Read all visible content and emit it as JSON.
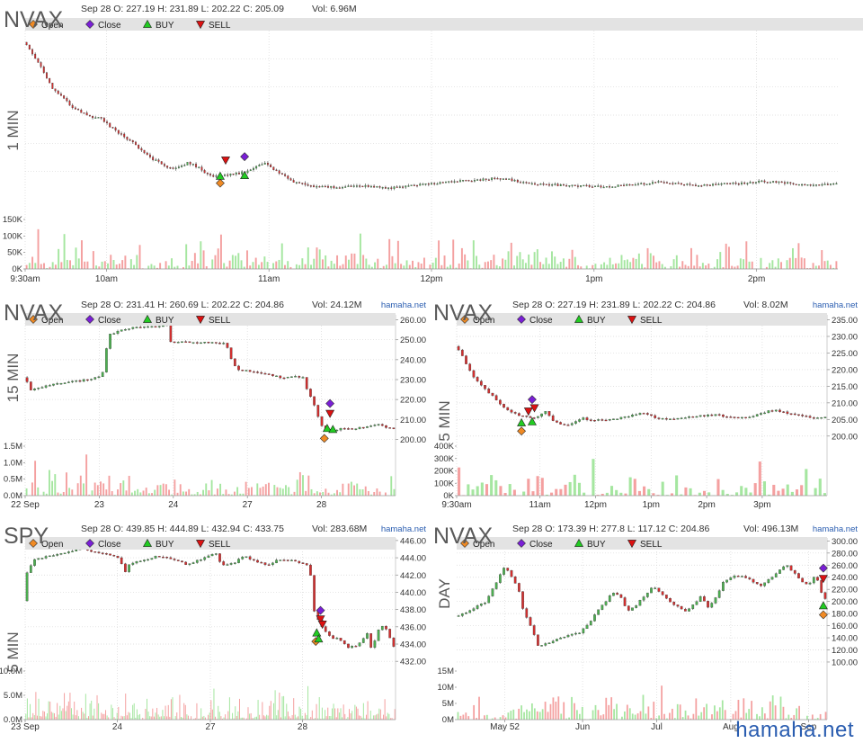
{
  "watermark": "hamaha.net",
  "colors": {
    "up": "#4caf50",
    "down": "#d32f2f",
    "vol_up": "#a5e6a0",
    "vol_down": "#f4a0a0",
    "buy": "#22cc22",
    "sell": "#dd1111",
    "open_marker": "#f08a24",
    "close_marker": "#7a1fd6",
    "legend_bar": "#e3e3e3",
    "grid": "#d8d8d8"
  },
  "chart_data": [
    {
      "id": "nvax-1min",
      "type": "candlestick",
      "symbol": "NVAX",
      "interval": "1 MIN",
      "info": "Sep 28 O: 227.19 H: 231.89 L: 202.22 C: 205.09",
      "volume_text": "Vol: 6.96M",
      "source": "",
      "legend": [
        "Open",
        "Close",
        "BUY",
        "SELL"
      ],
      "x_domain": [
        0,
        300
      ],
      "price_path": [
        [
          0,
          230.5
        ],
        [
          5,
          227.5
        ],
        [
          10,
          224
        ],
        [
          18,
          221
        ],
        [
          24,
          219.8
        ],
        [
          28,
          219.6
        ],
        [
          32,
          218.2
        ],
        [
          40,
          216
        ],
        [
          46,
          214
        ],
        [
          52,
          212.7
        ],
        [
          56,
          212.4
        ],
        [
          60,
          213.2
        ],
        [
          64,
          212.6
        ],
        [
          67,
          211.6
        ],
        [
          70,
          211.3
        ],
        [
          76,
          211.5
        ],
        [
          80,
          211.8
        ],
        [
          84,
          212.3
        ],
        [
          88,
          213.2
        ],
        [
          90,
          212.7
        ],
        [
          93,
          212
        ],
        [
          99,
          210.5
        ],
        [
          106,
          209.9
        ],
        [
          112,
          209.7
        ],
        [
          125,
          209.9
        ],
        [
          135,
          209.6
        ],
        [
          145,
          210
        ],
        [
          155,
          210.4
        ],
        [
          165,
          210.7
        ],
        [
          175,
          211
        ],
        [
          180,
          210.7
        ],
        [
          185,
          210.3
        ],
        [
          190,
          210.1
        ],
        [
          200,
          210
        ],
        [
          210,
          209.8
        ],
        [
          220,
          209.9
        ],
        [
          228,
          210.2
        ],
        [
          235,
          210.5
        ],
        [
          240,
          210.2
        ],
        [
          248,
          210
        ],
        [
          256,
          210.1
        ],
        [
          264,
          210.3
        ],
        [
          272,
          210.5
        ],
        [
          278,
          210.4
        ],
        [
          285,
          210.2
        ],
        [
          292,
          210.1
        ],
        [
          300,
          210.2
        ]
      ],
      "volume_bars": 280,
      "volume_max": 150000,
      "y_ticks": [],
      "vol_ticks": [
        "150K",
        "100K",
        "50K",
        "0K"
      ],
      "x_ticks": [
        {
          "x": 0,
          "label": "9:30am"
        },
        {
          "x": 30,
          "label": "10am"
        },
        {
          "x": 90,
          "label": "11am"
        },
        {
          "x": 150,
          "label": "12pm"
        },
        {
          "x": 210,
          "label": "1pm"
        },
        {
          "x": 270,
          "label": "2pm"
        }
      ],
      "markers": [
        {
          "kind": "Open",
          "x": 72,
          "y": 210.3
        },
        {
          "kind": "BUY",
          "x": 72,
          "y": 211.3
        },
        {
          "kind": "SELL",
          "x": 74,
          "y": 213.6
        },
        {
          "kind": "Close",
          "x": 81,
          "y": 214.1
        },
        {
          "kind": "BUY",
          "x": 81,
          "y": 211.4
        }
      ]
    },
    {
      "id": "nvax-15min",
      "type": "candlestick",
      "symbol": "NVAX",
      "interval": "15 MIN",
      "info": "Sep 28 O: 231.41 H: 260.69 L: 202.22 C: 204.86",
      "volume_text": "Vol: 24.12M",
      "source": "hamaha.net",
      "legend": [
        "Open",
        "Close",
        "BUY",
        "SELL"
      ],
      "x_domain": [
        0,
        130
      ],
      "price_path": [
        [
          0,
          231
        ],
        [
          1,
          228
        ],
        [
          2,
          225
        ],
        [
          4,
          225.5
        ],
        [
          8,
          227
        ],
        [
          14,
          228.5
        ],
        [
          20,
          229.5
        ],
        [
          25,
          231
        ],
        [
          27,
          232.5
        ],
        [
          28,
          238
        ],
        [
          29,
          252
        ],
        [
          32,
          254
        ],
        [
          38,
          256
        ],
        [
          42,
          257
        ],
        [
          48,
          256.5
        ],
        [
          50,
          257.5
        ],
        [
          51,
          249
        ],
        [
          53,
          248.8
        ],
        [
          60,
          248.7
        ],
        [
          67,
          248.4
        ],
        [
          70,
          248
        ],
        [
          71,
          246
        ],
        [
          73,
          238
        ],
        [
          75,
          235
        ],
        [
          80,
          233.8
        ],
        [
          86,
          232.5
        ],
        [
          90,
          231
        ],
        [
          95,
          232
        ],
        [
          98,
          230.6
        ],
        [
          99,
          224
        ],
        [
          101,
          220
        ],
        [
          102,
          214
        ],
        [
          104,
          207
        ],
        [
          106,
          204
        ],
        [
          108,
          204.5
        ],
        [
          111,
          205.5
        ],
        [
          116,
          205.3
        ],
        [
          120,
          206.5
        ],
        [
          124,
          207.4
        ],
        [
          127,
          205.8
        ],
        [
          130,
          205.5
        ]
      ],
      "volume_bars": 130,
      "volume_max": 1700000,
      "y_ticks": [
        "260.00",
        "250.00",
        "240.00",
        "230.00",
        "220.00",
        "210.00",
        "200.00"
      ],
      "y_min": 197.5,
      "y_max": 262.5,
      "vol_ticks": [
        "1.5M",
        "1.0M",
        "0.5M",
        "0.0M"
      ],
      "x_ticks": [
        {
          "x": 0,
          "label": "22 Sep"
        },
        {
          "x": 26,
          "label": "23"
        },
        {
          "x": 52,
          "label": "24"
        },
        {
          "x": 78,
          "label": "27"
        },
        {
          "x": 104,
          "label": "28"
        }
      ],
      "markers": [
        {
          "kind": "Open",
          "x": 105,
          "y": 200.5
        },
        {
          "kind": "Close",
          "x": 107,
          "y": 218
        },
        {
          "kind": "BUY",
          "x": 106,
          "y": 205.5
        },
        {
          "kind": "SELL",
          "x": 107,
          "y": 213
        },
        {
          "kind": "BUY",
          "x": 108,
          "y": 205
        }
      ]
    },
    {
      "id": "nvax-5min",
      "type": "candlestick",
      "symbol": "NVAX",
      "interval": "5 MIN",
      "info": "Sep 28 O: 227.19 H: 231.89 L: 202.22 C: 204.86",
      "volume_text": "Vol: 8.02M",
      "source": "hamaha.net",
      "legend": [
        "Open",
        "Close",
        "BUY",
        "SELL"
      ],
      "x_domain": [
        0,
        80
      ],
      "price_path": [
        [
          0,
          227
        ],
        [
          2,
          222
        ],
        [
          4,
          217
        ],
        [
          7,
          213
        ],
        [
          10,
          209
        ],
        [
          12,
          207
        ],
        [
          14,
          206
        ],
        [
          17,
          205.5
        ],
        [
          19,
          207.5
        ],
        [
          21,
          204.5
        ],
        [
          23,
          203
        ],
        [
          25,
          204
        ],
        [
          27,
          205.5
        ],
        [
          29,
          204.8
        ],
        [
          33,
          205
        ],
        [
          37,
          205.8
        ],
        [
          40,
          207
        ],
        [
          43,
          205.6
        ],
        [
          47,
          205
        ],
        [
          52,
          206
        ],
        [
          56,
          206.4
        ],
        [
          60,
          205.5
        ],
        [
          64,
          205.9
        ],
        [
          67,
          207.4
        ],
        [
          69,
          207.6
        ],
        [
          73,
          206.4
        ],
        [
          76,
          205.7
        ],
        [
          80,
          205.5
        ]
      ],
      "volume_bars": 80,
      "volume_max": 400000,
      "y_ticks": [
        "235.00",
        "230.00",
        "225.00",
        "220.00",
        "215.00",
        "210.00",
        "205.00",
        "200.00"
      ],
      "y_min": 197.5,
      "y_max": 236.5,
      "vol_ticks": [
        "400K",
        "300K",
        "200K",
        "100K",
        "0K"
      ],
      "x_ticks": [
        {
          "x": 0,
          "label": "9:30am"
        },
        {
          "x": 18,
          "label": "11am"
        },
        {
          "x": 30,
          "label": "12pm"
        },
        {
          "x": 42,
          "label": "1pm"
        },
        {
          "x": 54,
          "label": "2pm"
        },
        {
          "x": 66,
          "label": "3pm"
        }
      ],
      "markers": [
        {
          "kind": "Open",
          "x": 14,
          "y": 201.5
        },
        {
          "kind": "BUY",
          "x": 14,
          "y": 204
        },
        {
          "kind": "SELL",
          "x": 15.5,
          "y": 207.5
        },
        {
          "kind": "Close",
          "x": 16.3,
          "y": 211
        },
        {
          "kind": "BUY",
          "x": 16.3,
          "y": 204.3
        },
        {
          "kind": "SELL",
          "x": 16.8,
          "y": 208.5
        }
      ]
    },
    {
      "id": "spy-5min",
      "type": "candlestick",
      "symbol": "SPY",
      "interval": "5 MIN",
      "info": "Sep 28 O: 439.85 H: 444.89 L: 432.94 C: 433.75",
      "volume_text": "Vol: 283.68M",
      "source": "hamaha.net",
      "legend": [
        "Open",
        "Close",
        "BUY",
        "SELL"
      ],
      "x_domain": [
        0,
        390
      ],
      "price_path": [
        [
          0,
          439
        ],
        [
          2,
          442.3
        ],
        [
          10,
          443.8
        ],
        [
          30,
          444.3
        ],
        [
          50,
          444.8
        ],
        [
          60,
          445.2
        ],
        [
          70,
          444.7
        ],
        [
          80,
          444.6
        ],
        [
          90,
          444.3
        ],
        [
          100,
          443.8
        ],
        [
          105,
          442.2
        ],
        [
          110,
          443.4
        ],
        [
          120,
          443.6
        ],
        [
          140,
          444.2
        ],
        [
          155,
          443.9
        ],
        [
          170,
          443.2
        ],
        [
          180,
          443.6
        ],
        [
          190,
          444
        ],
        [
          200,
          444.6
        ],
        [
          205,
          443.6
        ],
        [
          210,
          443.1
        ],
        [
          220,
          443.4
        ],
        [
          230,
          444.2
        ],
        [
          245,
          443.5
        ],
        [
          255,
          443.2
        ],
        [
          268,
          443.8
        ],
        [
          285,
          443.6
        ],
        [
          295,
          443.2
        ],
        [
          300,
          442.8
        ],
        [
          302,
          439
        ],
        [
          305,
          437.5
        ],
        [
          315,
          435.5
        ],
        [
          325,
          434.5
        ],
        [
          330,
          434.7
        ],
        [
          340,
          433.6
        ],
        [
          350,
          433.9
        ],
        [
          355,
          434.5
        ],
        [
          360,
          435.3
        ],
        [
          365,
          433.2
        ],
        [
          370,
          435.2
        ],
        [
          375,
          436.2
        ],
        [
          380,
          435.8
        ],
        [
          385,
          434.5
        ],
        [
          388,
          433.7
        ],
        [
          390,
          433.7
        ]
      ],
      "volume_bars": 260,
      "volume_max": 10000000,
      "y_ticks": [
        "446.00",
        "444.00",
        "442.00",
        "440.00",
        "438.00",
        "436.00",
        "434.00",
        "432.00"
      ],
      "y_min": 431.5,
      "y_max": 446.3,
      "vol_ticks": [
        "10.0M",
        "5.0M",
        "0.0M"
      ],
      "x_ticks": [
        {
          "x": 0,
          "label": "23 Sep"
        },
        {
          "x": 97,
          "label": "24"
        },
        {
          "x": 195,
          "label": "27"
        },
        {
          "x": 292,
          "label": "28"
        }
      ],
      "markers": [
        {
          "kind": "Open",
          "x": 306,
          "y": 434.3
        },
        {
          "kind": "Close",
          "x": 311,
          "y": 437.9
        },
        {
          "kind": "BUY",
          "x": 307,
          "y": 435.3
        },
        {
          "kind": "SELL",
          "x": 311,
          "y": 436.9
        },
        {
          "kind": "BUY",
          "x": 309,
          "y": 434.6
        },
        {
          "kind": "SELL",
          "x": 313,
          "y": 436.3
        }
      ]
    },
    {
      "id": "nvax-day",
      "type": "candlestick",
      "symbol": "NVAX",
      "interval": "DAY",
      "info": "Sep 28 O: 173.39 H: 277.8 L: 117.12 C: 204.86",
      "volume_text": "Vol: 496.13M",
      "source": "hamaha.net",
      "legend": [
        "Open",
        "Close",
        "BUY",
        "SELL"
      ],
      "x_domain": [
        0,
        100
      ],
      "price_path": [
        [
          0,
          175
        ],
        [
          5,
          190
        ],
        [
          8,
          200
        ],
        [
          11,
          235
        ],
        [
          13,
          258
        ],
        [
          15,
          240
        ],
        [
          17,
          215
        ],
        [
          18,
          185
        ],
        [
          20,
          160
        ],
        [
          22,
          125
        ],
        [
          24,
          130
        ],
        [
          27,
          137
        ],
        [
          30,
          145
        ],
        [
          33,
          148
        ],
        [
          36,
          165
        ],
        [
          38,
          185
        ],
        [
          40,
          198
        ],
        [
          42,
          215
        ],
        [
          44,
          210
        ],
        [
          46,
          185
        ],
        [
          48,
          190
        ],
        [
          50,
          205
        ],
        [
          53,
          225
        ],
        [
          56,
          210
        ],
        [
          58,
          198
        ],
        [
          60,
          190
        ],
        [
          62,
          183
        ],
        [
          64,
          195
        ],
        [
          66,
          210
        ],
        [
          68,
          190
        ],
        [
          70,
          208
        ],
        [
          72,
          232
        ],
        [
          75,
          242
        ],
        [
          78,
          240
        ],
        [
          80,
          232
        ],
        [
          82,
          225
        ],
        [
          85,
          240
        ],
        [
          87,
          252
        ],
        [
          89,
          260
        ],
        [
          91,
          248
        ],
        [
          93,
          232
        ],
        [
          95,
          228
        ],
        [
          97,
          245
        ],
        [
          99,
          205
        ],
        [
          100,
          205
        ]
      ],
      "volume_bars": 140,
      "volume_max": 16000000,
      "y_ticks": [
        "300.00",
        "280.00",
        "260.00",
        "240.00",
        "220.00",
        "200.00",
        "180.00",
        "160.00",
        "140.00",
        "120.00",
        "100.00"
      ],
      "y_min": 94,
      "y_max": 305,
      "vol_ticks": [
        "15M",
        "10M",
        "5M",
        "0M"
      ],
      "x_ticks": [
        {
          "x": 13,
          "label": "May 52"
        },
        {
          "x": 34,
          "label": "Jun"
        },
        {
          "x": 54,
          "label": "Jul"
        },
        {
          "x": 74,
          "label": "Aug"
        },
        {
          "x": 95,
          "label": "Sep"
        }
      ],
      "markers": [
        {
          "kind": "Close",
          "x": 99,
          "y": 255
        },
        {
          "kind": "SELL",
          "x": 99,
          "y": 238
        },
        {
          "kind": "BUY",
          "x": 99,
          "y": 193
        },
        {
          "kind": "Open",
          "x": 99,
          "y": 178
        }
      ]
    }
  ]
}
